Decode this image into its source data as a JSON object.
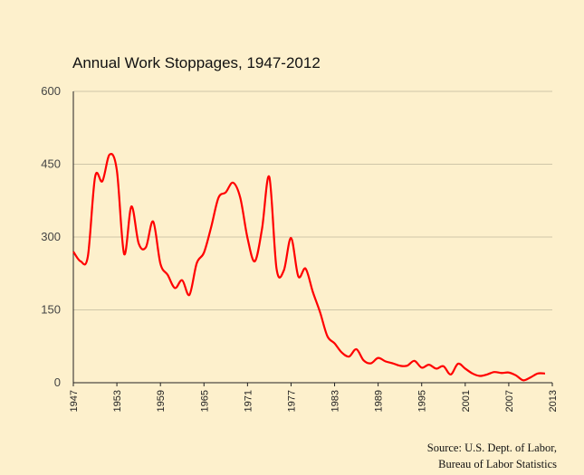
{
  "chart_data": {
    "type": "line",
    "title": "Annual Work Stoppages, 1947-2012",
    "xlabel": "",
    "ylabel": "",
    "xlim": [
      1947,
      2013
    ],
    "ylim": [
      0,
      600
    ],
    "x_ticks": [
      "1947",
      "1953",
      "1959",
      "1965",
      "1971",
      "1977",
      "1983",
      "1989",
      "1995",
      "2001",
      "2007",
      "2013"
    ],
    "y_ticks": [
      "0",
      "150",
      "300",
      "450",
      "600"
    ],
    "grid": true,
    "line_color": "#ff0000",
    "series": [
      {
        "x": [
          1947,
          1948,
          1949,
          1950,
          1951,
          1952,
          1953,
          1954,
          1955,
          1956,
          1957,
          1958,
          1959,
          1960,
          1961,
          1962,
          1963,
          1964,
          1965,
          1966,
          1967,
          1968,
          1969,
          1970,
          1971,
          1972,
          1973,
          1974,
          1975,
          1976,
          1977,
          1978,
          1979,
          1980,
          1981,
          1982,
          1983,
          1984,
          1985,
          1986,
          1987,
          1988,
          1989,
          1990,
          1991,
          1992,
          1993,
          1994,
          1995,
          1996,
          1997,
          1998,
          1999,
          2000,
          2001,
          2002,
          2003,
          2004,
          2005,
          2006,
          2007,
          2008,
          2009,
          2010,
          2011,
          2012
        ],
        "y": [
          270,
          250,
          260,
          424,
          415,
          470,
          437,
          265,
          363,
          287,
          279,
          332,
          245,
          222,
          195,
          211,
          181,
          246,
          268,
          321,
          381,
          392,
          412,
          381,
          298,
          250,
          317,
          424,
          235,
          231,
          298,
          219,
          235,
          187,
          145,
          96,
          81,
          62,
          54,
          69,
          46,
          40,
          51,
          44,
          40,
          35,
          35,
          45,
          31,
          37,
          29,
          34,
          17,
          39,
          29,
          19,
          14,
          17,
          22,
          20,
          21,
          15,
          5,
          11,
          19,
          19
        ]
      }
    ],
    "source": [
      "Source: U.S. Dept. of Labor,",
      "Bureau of Labor Statistics"
    ]
  }
}
